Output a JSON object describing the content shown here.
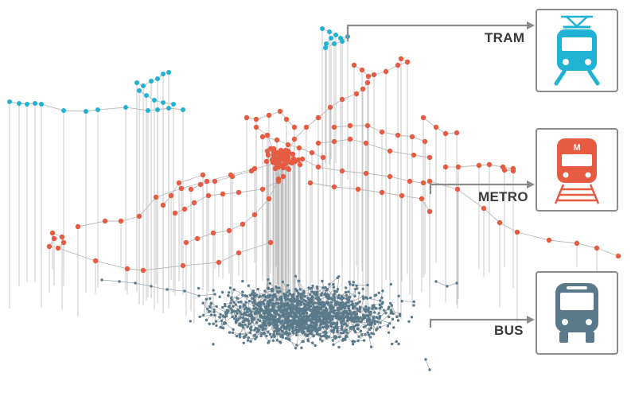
{
  "layers": [
    {
      "id": "tram",
      "label": "TRAM",
      "color": "#1fb2d4",
      "icon": "tram-icon"
    },
    {
      "id": "metro",
      "label": "METRO",
      "color": "#e65b42",
      "icon": "metro-icon",
      "badge": "M"
    },
    {
      "id": "bus",
      "label": "BUS",
      "color": "#5a7a8c",
      "icon": "bus-icon"
    }
  ],
  "colors": {
    "pointer": "#8a8a8a",
    "line": "#bdbdbd",
    "label": "#3a3a3a"
  }
}
